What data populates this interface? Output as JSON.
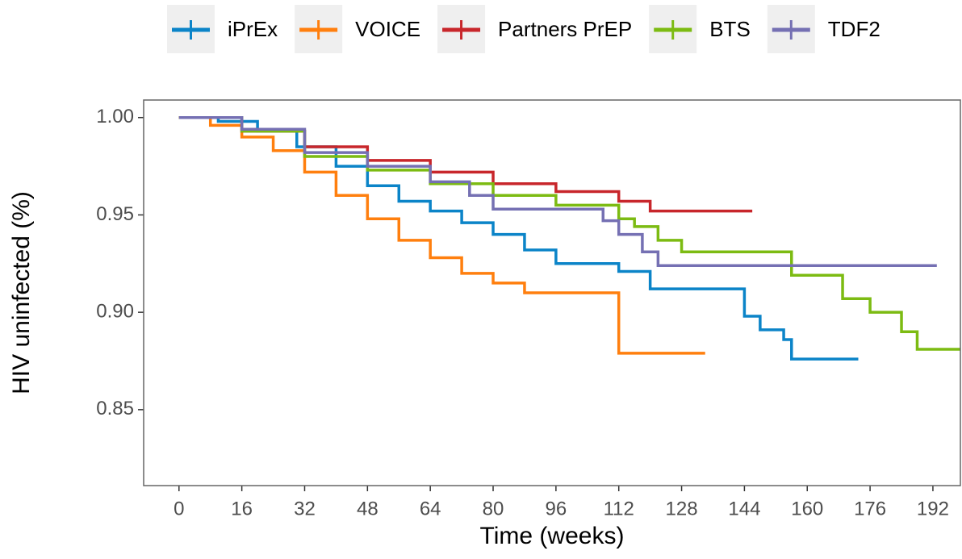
{
  "chart_data": {
    "type": "step",
    "x_label": "Time (weeks)",
    "y_label": "HIV uninfected (%)",
    "xlim": [
      -9,
      199
    ],
    "ylim": [
      0.811,
      1.009
    ],
    "xticks": [
      0,
      16,
      32,
      48,
      64,
      80,
      96,
      112,
      128,
      144,
      160,
      176,
      192
    ],
    "yticks": [
      {
        "value": 0.85,
        "label": "0.85"
      },
      {
        "value": 0.9,
        "label": "0.90"
      },
      {
        "value": 0.95,
        "label": "0.95"
      },
      {
        "value": 1,
        "label": "1.00"
      }
    ],
    "series": [
      {
        "name": "iPrEx",
        "color": "#0b84c8",
        "x": [
          0,
          10,
          20,
          30,
          40,
          48,
          56,
          64,
          72,
          80,
          88,
          96,
          112,
          120,
          140,
          144,
          148,
          154,
          156,
          173
        ],
        "values": [
          1,
          0.998,
          0.993,
          0.985,
          0.975,
          0.965,
          0.957,
          0.952,
          0.946,
          0.94,
          0.932,
          0.925,
          0.921,
          0.912,
          0.912,
          0.898,
          0.891,
          0.886,
          0.876,
          0.876
        ]
      },
      {
        "name": "VOICE",
        "color": "#ff7f0e",
        "x": [
          0,
          8,
          16,
          24,
          32,
          40,
          48,
          56,
          64,
          72,
          80,
          88,
          112,
          112,
          134
        ],
        "values": [
          1,
          0.996,
          0.99,
          0.983,
          0.972,
          0.96,
          0.948,
          0.937,
          0.928,
          0.92,
          0.915,
          0.91,
          0.91,
          0.879,
          0.879
        ]
      },
      {
        "name": "Partners PrEP",
        "color": "#c8262b",
        "x": [
          0,
          16,
          32,
          48,
          64,
          80,
          96,
          112,
          120,
          146
        ],
        "values": [
          1,
          0.993,
          0.985,
          0.978,
          0.972,
          0.966,
          0.962,
          0.957,
          0.952,
          0.952
        ]
      },
      {
        "name": "BTS",
        "color": "#7cbb12",
        "x": [
          0,
          16,
          32,
          48,
          64,
          80,
          96,
          112,
          116,
          122,
          128,
          146,
          156,
          168,
          169,
          176,
          184,
          188,
          199
        ],
        "values": [
          1,
          0.993,
          0.98,
          0.973,
          0.966,
          0.96,
          0.955,
          0.948,
          0.944,
          0.937,
          0.931,
          0.931,
          0.919,
          0.919,
          0.907,
          0.9,
          0.89,
          0.881,
          0.881
        ]
      },
      {
        "name": "TDF2",
        "color": "#7570b3",
        "x": [
          0,
          16,
          32,
          48,
          64,
          74,
          80,
          100,
          108,
          112,
          118,
          122,
          193
        ],
        "values": [
          1,
          0.994,
          0.982,
          0.975,
          0.967,
          0.96,
          0.953,
          0.953,
          0.947,
          0.94,
          0.931,
          0.924,
          0.924
        ]
      }
    ]
  }
}
